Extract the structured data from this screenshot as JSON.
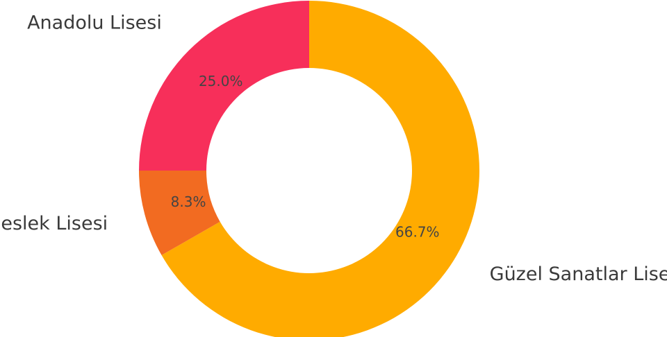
{
  "chart_data": {
    "type": "pie",
    "donut": true,
    "start": "top, clockwise",
    "slices": [
      {
        "category": "Güzel Sanatlar Lisesi",
        "value": 66.7,
        "label": "66.7%",
        "color": "#FFAB00"
      },
      {
        "category": "Meslek Lisesi",
        "value": 8.3,
        "label": "8.3%",
        "color": "#F26B21"
      },
      {
        "category": "Anadolu Lisesi",
        "value": 25.0,
        "label": "25.0%",
        "color": "#F72F5A"
      }
    ]
  }
}
